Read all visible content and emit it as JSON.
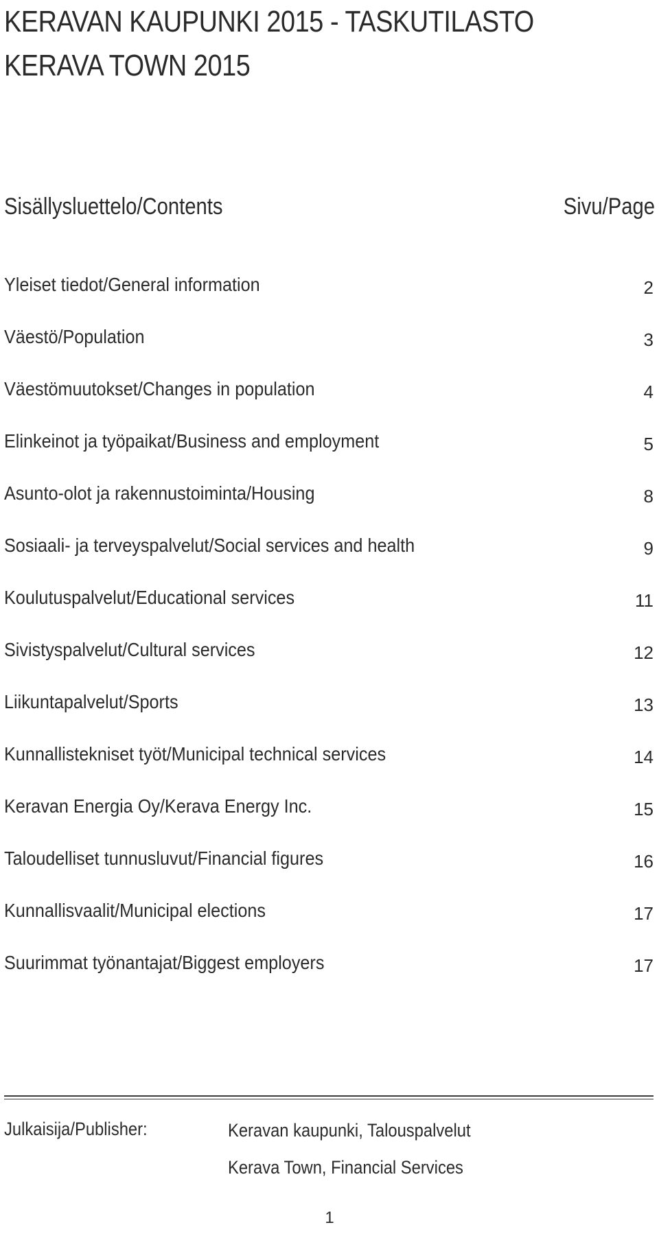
{
  "title": {
    "line1": "KERAVAN KAUPUNKI 2015 - TASKUTILASTO",
    "line2": "KERAVA TOWN 2015"
  },
  "contents_header": {
    "left": "Sisällysluettelo/Contents",
    "right": "Sivu/Page"
  },
  "toc": [
    {
      "label": "Yleiset tiedot/General information",
      "page": "2"
    },
    {
      "label": "Väestö/Population",
      "page": "3"
    },
    {
      "label": "Väestömuutokset/Changes in population",
      "page": "4"
    },
    {
      "label": "Elinkeinot ja työpaikat/Business and employment",
      "page": "5"
    },
    {
      "label": "Asunto-olot ja rakennustoiminta/Housing",
      "page": "8"
    },
    {
      "label": "Sosiaali- ja terveyspalvelut/Social services and health",
      "page": "9"
    },
    {
      "label": "Koulutuspalvelut/Educational services",
      "page": "11"
    },
    {
      "label": "Sivistyspalvelut/Cultural services",
      "page": "12"
    },
    {
      "label": "Liikuntapalvelut/Sports",
      "page": "13"
    },
    {
      "label": "Kunnallistekniset työt/Municipal technical services",
      "page": "14"
    },
    {
      "label": "Keravan Energia Oy/Kerava Energy Inc.",
      "page": "15"
    },
    {
      "label": "Taloudelliset tunnusluvut/Financial figures",
      "page": "16"
    },
    {
      "label": "Kunnallisvaalit/Municipal elections",
      "page": "17"
    },
    {
      "label": "Suurimmat työnantajat/Biggest employers",
      "page": "17"
    }
  ],
  "publisher": {
    "label": "Julkaisija/Publisher:",
    "line1": "Keravan kaupunki, Talouspalvelut",
    "line2": "Kerava Town, Financial Services"
  },
  "page_number": "1"
}
